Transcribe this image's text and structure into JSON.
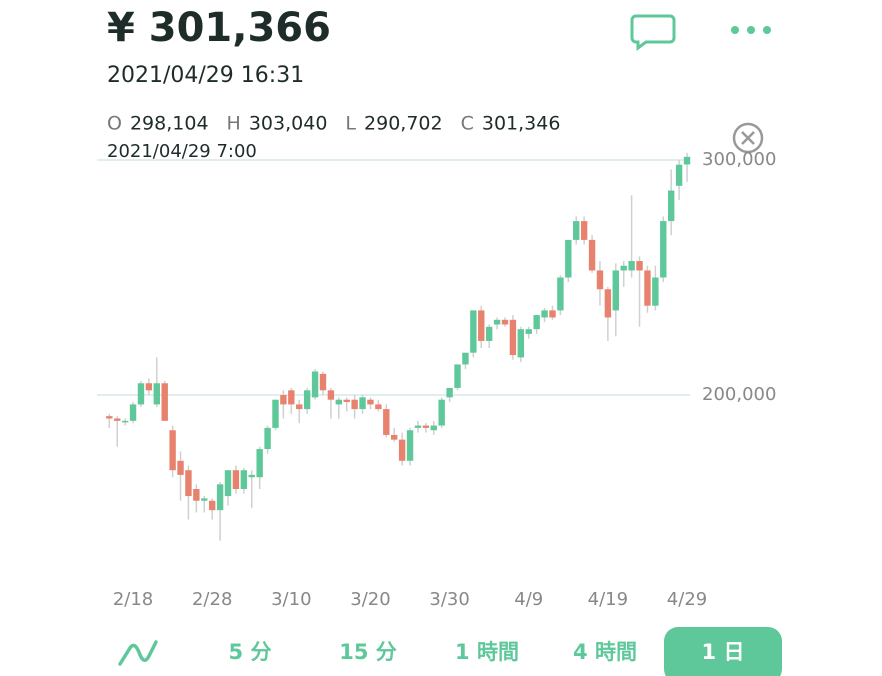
{
  "header": {
    "price": "¥ 301,366",
    "datetime": "2021/04/29 16:31",
    "ohlc": [
      {
        "key": "O",
        "value": "298,104"
      },
      {
        "key": "H",
        "value": "303,040"
      },
      {
        "key": "L",
        "value": "290,702"
      },
      {
        "key": "C",
        "value": "301,346"
      }
    ],
    "cursor_time": "2021/04/29 7:00"
  },
  "chart_data": {
    "type": "candlestick",
    "categories": [
      null,
      null,
      null,
      "2/18",
      null,
      null,
      null,
      null,
      null,
      null,
      null,
      null,
      null,
      "2/28",
      null,
      null,
      null,
      null,
      null,
      null,
      null,
      null,
      null,
      "3/10",
      null,
      null,
      null,
      null,
      null,
      null,
      null,
      null,
      null,
      "3/20",
      null,
      null,
      null,
      null,
      null,
      null,
      null,
      null,
      null,
      "3/30",
      null,
      null,
      null,
      null,
      null,
      null,
      null,
      null,
      null,
      "4/9",
      null,
      null,
      null,
      null,
      null,
      null,
      null,
      null,
      null,
      "4/19",
      null,
      null,
      null,
      null,
      null,
      null,
      null,
      null,
      null,
      "4/29"
    ],
    "open": [
      191000,
      190000,
      189000,
      189000,
      196000,
      205000,
      196000,
      205000,
      185000,
      172000,
      168000,
      160000,
      155000,
      155000,
      151000,
      157000,
      168000,
      160000,
      165000,
      165000,
      177000,
      186000,
      200000,
      202000,
      196000,
      194000,
      199000,
      209000,
      202000,
      196000,
      198000,
      198000,
      194000,
      198000,
      196000,
      194000,
      183000,
      181000,
      172000,
      186000,
      187000,
      185000,
      187000,
      199000,
      203000,
      213000,
      218000,
      236000,
      223000,
      230000,
      232000,
      232000,
      216000,
      226000,
      228000,
      233000,
      236000,
      236000,
      250000,
      266000,
      274000,
      266000,
      253000,
      245000,
      236000,
      253000,
      253000,
      257000,
      253000,
      238000,
      250000,
      274000,
      289000,
      298104
    ],
    "high": [
      192000,
      191000,
      190000,
      197000,
      206000,
      207000,
      216000,
      206000,
      187000,
      176000,
      170000,
      162000,
      157000,
      156000,
      163000,
      168000,
      170000,
      169000,
      168000,
      178000,
      187000,
      198000,
      202000,
      203000,
      198000,
      203000,
      211000,
      210000,
      203000,
      199000,
      199000,
      200000,
      200000,
      199000,
      198000,
      196000,
      186000,
      184000,
      186000,
      189000,
      188000,
      189000,
      199000,
      203000,
      213000,
      218000,
      236000,
      238000,
      230000,
      233000,
      233000,
      234000,
      229000,
      229000,
      234000,
      237000,
      238000,
      251000,
      266000,
      276000,
      276000,
      268000,
      257000,
      246000,
      256000,
      257000,
      285000,
      259000,
      255000,
      255000,
      276000,
      296000,
      300000,
      303040
    ],
    "low": [
      186000,
      178000,
      187000,
      188000,
      195000,
      200000,
      195000,
      189000,
      165000,
      155000,
      147000,
      150000,
      150000,
      147000,
      138000,
      153000,
      158000,
      158000,
      152000,
      160000,
      175000,
      185000,
      190000,
      192000,
      188000,
      192000,
      198000,
      200000,
      190000,
      190000,
      193000,
      190000,
      192000,
      194000,
      193000,
      182000,
      180000,
      170000,
      170000,
      184000,
      184000,
      183000,
      186000,
      197000,
      202000,
      211000,
      216000,
      220000,
      220000,
      228000,
      229000,
      215000,
      214000,
      224000,
      226000,
      231000,
      232000,
      234000,
      248000,
      264000,
      264000,
      252000,
      238000,
      223000,
      225000,
      246000,
      250000,
      229000,
      235000,
      236000,
      248000,
      268000,
      283000,
      290702
    ],
    "close": [
      190000,
      189000,
      189000,
      196000,
      205000,
      202000,
      205000,
      189000,
      168000,
      166000,
      157000,
      155000,
      156000,
      151000,
      162000,
      168000,
      160000,
      168000,
      166000,
      177000,
      186000,
      198000,
      196000,
      196000,
      194000,
      202000,
      210000,
      202000,
      198000,
      198000,
      197000,
      194000,
      199000,
      196000,
      194000,
      183000,
      181000,
      172000,
      185000,
      187000,
      186000,
      187000,
      198000,
      203000,
      213000,
      218000,
      236000,
      223000,
      229000,
      232000,
      230000,
      217000,
      228000,
      228000,
      234000,
      236000,
      233000,
      250000,
      266000,
      274000,
      266000,
      253000,
      245000,
      233000,
      253000,
      255000,
      257000,
      253000,
      238000,
      250000,
      274000,
      287000,
      298000,
      301346
    ],
    "up_color": "#5fc89a",
    "down_color": "#e8826e",
    "ylim": [
      120000,
      310000
    ],
    "yticks": [
      {
        "value": 200000,
        "label": "200,000"
      },
      {
        "value": 300000,
        "label": "300,000"
      }
    ],
    "grid": true
  },
  "tabs": [
    "5 分",
    "15 分",
    "1 時間",
    "4 時間",
    "1 日"
  ],
  "selected_tab": 4
}
